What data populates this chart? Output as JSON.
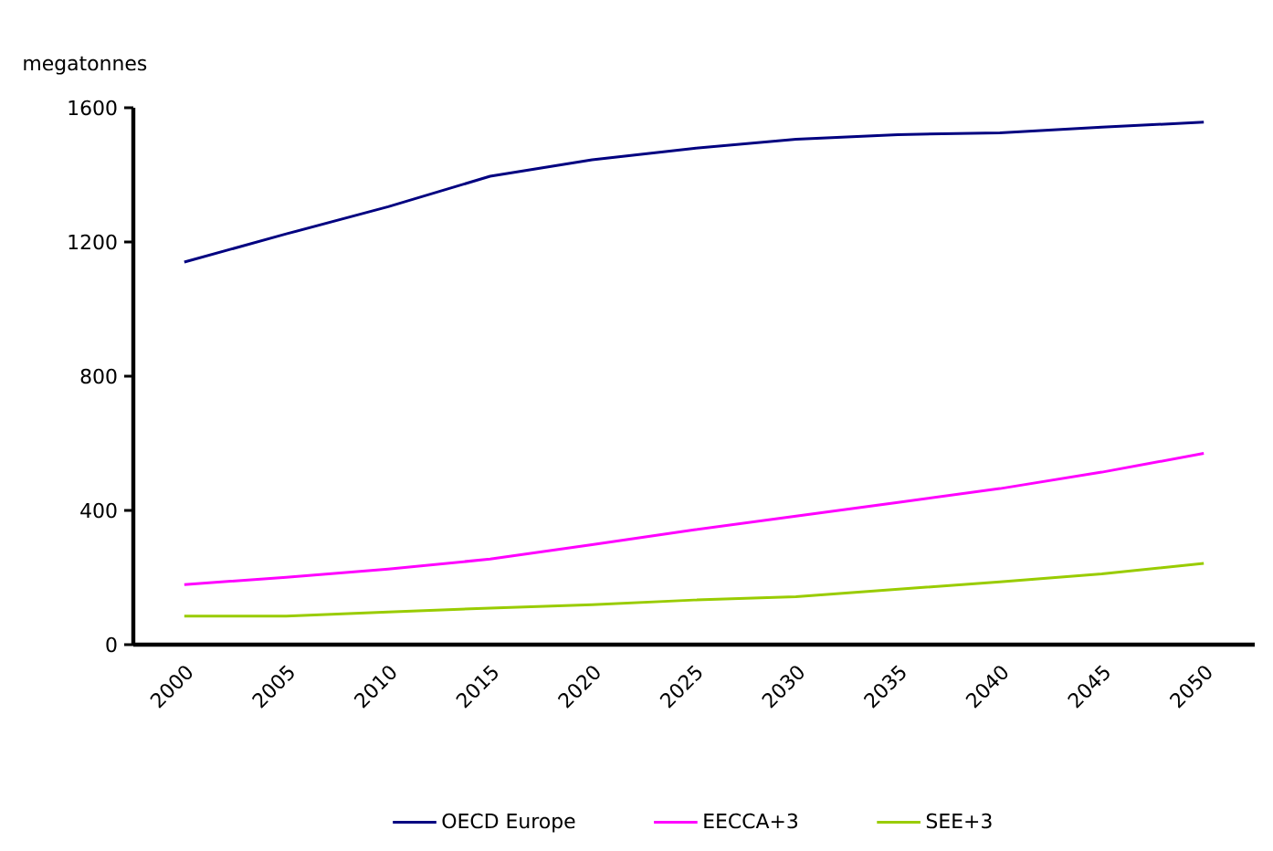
{
  "chart_data": {
    "type": "line",
    "ylabel": "megatonnes",
    "categories": [
      "2000",
      "2005",
      "2010",
      "2015",
      "2020",
      "2025",
      "2030",
      "2035",
      "2040",
      "2045",
      "2050"
    ],
    "ylim": [
      0,
      1600
    ],
    "yticks": [
      0,
      400,
      800,
      1200,
      1600
    ],
    "grid": false,
    "legend": "bottom",
    "marker": "none",
    "line_style": "solid",
    "series": [
      {
        "name": "OECD Europe",
        "color": "#000080",
        "values": [
          1140,
          1224,
          1305,
          1396,
          1445,
          1479,
          1506,
          1520,
          1525,
          1542,
          1557
        ]
      },
      {
        "name": "EECCA+3",
        "color": "#ff00ff",
        "values": [
          179,
          201,
          225,
          255,
          298,
          342,
          383,
          424,
          465,
          514,
          570
        ]
      },
      {
        "name": "SEE+3",
        "color": "#99cc00",
        "values": [
          85,
          85,
          97,
          109,
          119,
          133,
          143,
          165,
          187,
          211,
          242
        ]
      }
    ]
  }
}
